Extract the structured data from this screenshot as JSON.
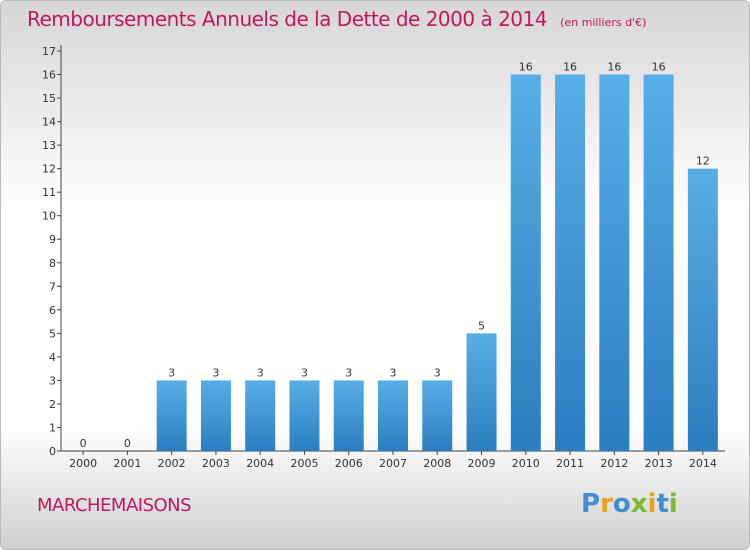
{
  "title": {
    "main": "Remboursements Annuels de la Dette de 2000 à 2014",
    "unit": "(en milliers d'€)"
  },
  "commune": "MARCHEMAISONS",
  "logo": {
    "letters": [
      "P",
      "r",
      "o",
      "x",
      "i",
      "t",
      "i"
    ],
    "colors": [
      "#3e8ed0",
      "#e8a21b",
      "#3e8ed0",
      "#7cbb2a",
      "#e8a21b",
      "#3e8ed0",
      "#7cbb2a"
    ]
  },
  "colors": {
    "bar_top": "#5aaee6",
    "bar_bottom": "#2a7ec0",
    "title": "#c2185b"
  },
  "chart_data": {
    "type": "bar",
    "categories": [
      "2000",
      "2001",
      "2002",
      "2003",
      "2004",
      "2005",
      "2006",
      "2007",
      "2008",
      "2009",
      "2010",
      "2011",
      "2012",
      "2013",
      "2014"
    ],
    "values": [
      0,
      0,
      3,
      3,
      3,
      3,
      3,
      3,
      3,
      5,
      16,
      16,
      16,
      16,
      12
    ],
    "data_labels": [
      "0",
      "0",
      "3",
      "3",
      "3",
      "3",
      "3",
      "3",
      "3",
      "5",
      "16",
      "16",
      "16",
      "16",
      "12"
    ],
    "yticks": [
      0,
      1,
      2,
      3,
      4,
      5,
      6,
      7,
      8,
      9,
      10,
      11,
      12,
      13,
      14,
      15,
      16,
      17
    ],
    "ylim": [
      0,
      17
    ],
    "title": "Remboursements Annuels de la Dette de 2000 à 2014",
    "xlabel": "",
    "ylabel": "",
    "grid": false
  }
}
